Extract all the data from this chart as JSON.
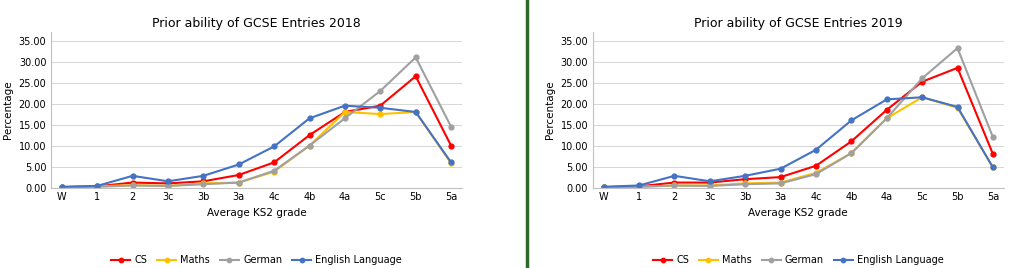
{
  "title_2018": "Prior ability of GCSE Entries 2018",
  "title_2019": "Prior ability of GCSE Entries 2019",
  "xlabel": "Average KS2 grade",
  "ylabel": "Percentage",
  "x_labels": [
    "W",
    "1",
    "2",
    "3c",
    "3b",
    "3a",
    "4c",
    "4b",
    "4a",
    "5c",
    "5b",
    "5a"
  ],
  "ylim": [
    0,
    37
  ],
  "yticks": [
    0,
    5,
    10,
    15,
    20,
    25,
    30,
    35
  ],
  "ytick_labels": [
    "0.00",
    "5.00",
    "10.00",
    "15.00",
    "20.00",
    "25.00",
    "30.00",
    "35.00"
  ],
  "series": {
    "CS": {
      "color": "#FF0000",
      "marker": "o",
      "linewidth": 1.5,
      "markersize": 3.5,
      "data_2018": [
        0.1,
        0.3,
        1.2,
        1.0,
        1.5,
        3.0,
        6.0,
        12.5,
        18.0,
        19.5,
        26.5,
        10.0
      ],
      "data_2019": [
        0.1,
        0.3,
        1.2,
        1.2,
        2.0,
        2.5,
        5.2,
        11.0,
        18.5,
        25.2,
        28.5,
        8.0
      ]
    },
    "Maths": {
      "color": "#FFC000",
      "marker": "o",
      "linewidth": 1.5,
      "markersize": 3.5,
      "data_2018": [
        0.1,
        0.3,
        0.6,
        0.4,
        1.0,
        1.2,
        3.8,
        10.0,
        18.0,
        17.5,
        18.0,
        5.8
      ],
      "data_2019": [
        0.1,
        0.2,
        0.5,
        0.5,
        1.0,
        1.2,
        3.5,
        8.2,
        16.5,
        21.5,
        19.0,
        4.8
      ]
    },
    "German": {
      "color": "#A0A0A0",
      "marker": "o",
      "linewidth": 1.5,
      "markersize": 3.5,
      "data_2018": [
        0.1,
        0.2,
        0.5,
        0.4,
        0.8,
        1.2,
        4.0,
        10.0,
        16.5,
        23.0,
        31.0,
        14.5
      ],
      "data_2019": [
        0.1,
        0.2,
        0.5,
        0.4,
        0.8,
        1.0,
        3.2,
        8.2,
        16.5,
        26.0,
        33.2,
        12.0
      ]
    },
    "English Language": {
      "color": "#4472C4",
      "marker": "o",
      "linewidth": 1.5,
      "markersize": 3.5,
      "data_2018": [
        0.2,
        0.4,
        2.8,
        1.5,
        2.8,
        5.5,
        9.8,
        16.5,
        19.5,
        19.0,
        18.0,
        6.0
      ],
      "data_2019": [
        0.2,
        0.5,
        2.8,
        1.5,
        2.8,
        4.5,
        9.0,
        16.0,
        21.0,
        21.5,
        19.2,
        4.8
      ]
    }
  },
  "background_color": "#FFFFFF",
  "grid_color": "#D0D0D0",
  "legend_order": [
    "CS",
    "Maths",
    "German",
    "English Language"
  ],
  "separator_color": "#2D6A2D",
  "fig_width": 10.24,
  "fig_height": 2.68,
  "dpi": 100
}
